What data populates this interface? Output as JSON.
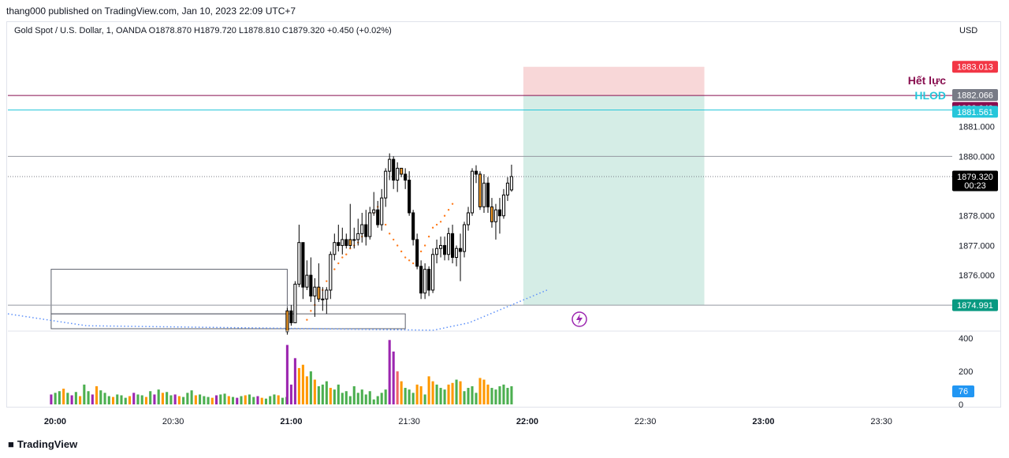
{
  "header": {
    "publisher_line": "thang000 published on TradingView.com, Jan 10, 2023 22:09 UTC+7",
    "symbol_line": "Gold Spot / U.S. Dollar, 1, OANDA  O1878.870  H1879.720  L1878.810  C1879.320  +0.450 (+0.02%)",
    "currency": "USD"
  },
  "footer": {
    "brand": "TradingView",
    "brand_icon": "tradingview-logo-icon"
  },
  "annotations": {
    "het_luc_label": "Hết lực",
    "hlod_label": "HLOD",
    "lightning_icon": "lightning-icon"
  },
  "price_badges": {
    "target": "1883.013",
    "grey": "1882.066",
    "het_luc": "1882.049",
    "hlod": "1881.561",
    "last": "1879.320",
    "countdown": "00:23",
    "stop": "1874.991",
    "volume": "76"
  },
  "colors": {
    "up_candle": "#ffffff",
    "down_candle": "#000000",
    "highlight_candle": "#f59d2a",
    "target_zone": "#f8d7d8",
    "stop_zone": "#d5ede6",
    "het_luc": "#880e4f",
    "hlod": "#26c6da",
    "volume_green": "#4caf50",
    "volume_orange": "#ff9800",
    "volume_purple": "#9c27b0",
    "volume_red": "#f0646a",
    "ma_blue": "#5b8ff9",
    "psar": "#ff7a1a"
  },
  "chart_data": {
    "type": "candlestick",
    "price_axis": {
      "ticks": [
        "1881.000",
        "1880.000",
        "1879.000",
        "1878.000",
        "1877.000",
        "1876.000"
      ],
      "range": [
        1874.2,
        1884.2
      ]
    },
    "time_axis": {
      "ticks": [
        "20:00",
        "20:30",
        "21:00",
        "21:30",
        "22:00",
        "22:30",
        "23:00",
        "23:30"
      ],
      "bold": [
        "20:00",
        "21:00",
        "22:00",
        "23:00"
      ]
    },
    "volume_axis": {
      "ticks": [
        "400",
        "200",
        "0"
      ],
      "range": [
        0,
        420
      ]
    },
    "candles_from": "20:59",
    "candles": [
      [
        1874.1,
        1874.9,
        1874.0,
        1874.8
      ],
      [
        1874.8,
        1875.0,
        1874.3,
        1874.4
      ],
      [
        1874.4,
        1875.8,
        1874.4,
        1875.7
      ],
      [
        1875.7,
        1877.7,
        1875.6,
        1877.1
      ],
      [
        1877.1,
        1877.1,
        1875.2,
        1875.6
      ],
      [
        1875.6,
        1876.5,
        1875.5,
        1876.0
      ],
      [
        1876.0,
        1876.6,
        1875.1,
        1875.3
      ],
      [
        1875.3,
        1875.9,
        1874.6,
        1875.6
      ],
      [
        1875.6,
        1876.4,
        1875.1,
        1875.2
      ],
      [
        1875.2,
        1875.6,
        1874.8,
        1875.2
      ],
      [
        1875.2,
        1875.6,
        1874.7,
        1875.5
      ],
      [
        1875.5,
        1876.8,
        1875.2,
        1876.7
      ],
      [
        1876.7,
        1877.4,
        1876.5,
        1877.1
      ],
      [
        1877.1,
        1877.7,
        1876.8,
        1877.0
      ],
      [
        1877.0,
        1877.6,
        1876.7,
        1877.2
      ],
      [
        1877.2,
        1877.4,
        1876.9,
        1877.0
      ],
      [
        1877.0,
        1878.4,
        1876.9,
        1877.2
      ],
      [
        1877.2,
        1877.6,
        1876.9,
        1877.2
      ],
      [
        1877.2,
        1877.9,
        1877.0,
        1877.4
      ],
      [
        1877.4,
        1878.1,
        1877.1,
        1877.7
      ],
      [
        1877.7,
        1878.2,
        1877.0,
        1877.3
      ],
      [
        1877.3,
        1878.3,
        1877.2,
        1878.1
      ],
      [
        1878.1,
        1878.8,
        1878.0,
        1878.2
      ],
      [
        1878.2,
        1878.5,
        1877.6,
        1877.7
      ],
      [
        1877.7,
        1878.9,
        1877.5,
        1878.6
      ],
      [
        1878.6,
        1879.6,
        1878.3,
        1879.5
      ],
      [
        1879.5,
        1880.1,
        1879.2,
        1879.9
      ],
      [
        1879.9,
        1880.0,
        1878.9,
        1879.2
      ],
      [
        1879.2,
        1879.8,
        1878.8,
        1879.6
      ],
      [
        1879.6,
        1879.6,
        1879.3,
        1879.4
      ],
      [
        1879.4,
        1879.6,
        1878.9,
        1879.2
      ],
      [
        1879.2,
        1879.5,
        1878.0,
        1878.1
      ],
      [
        1878.1,
        1878.2,
        1877.0,
        1877.2
      ],
      [
        1877.2,
        1877.4,
        1876.2,
        1876.3
      ],
      [
        1876.3,
        1876.5,
        1875.2,
        1875.4
      ],
      [
        1875.4,
        1876.4,
        1875.2,
        1876.2
      ],
      [
        1876.2,
        1876.3,
        1875.3,
        1875.5
      ],
      [
        1875.5,
        1876.9,
        1875.4,
        1876.7
      ],
      [
        1876.7,
        1877.2,
        1876.4,
        1876.9
      ],
      [
        1876.9,
        1877.3,
        1876.6,
        1877.0
      ],
      [
        1877.0,
        1877.3,
        1876.5,
        1876.7
      ],
      [
        1876.7,
        1877.6,
        1876.5,
        1877.4
      ],
      [
        1877.4,
        1877.7,
        1876.4,
        1876.6
      ],
      [
        1876.6,
        1877.0,
        1876.3,
        1876.9
      ],
      [
        1876.9,
        1877.4,
        1875.8,
        1876.8
      ],
      [
        1876.8,
        1877.8,
        1876.6,
        1877.7
      ],
      [
        1877.7,
        1878.3,
        1877.5,
        1878.1
      ],
      [
        1878.1,
        1879.6,
        1878.0,
        1879.5
      ],
      [
        1879.5,
        1879.7,
        1879.1,
        1879.4
      ],
      [
        1879.4,
        1879.5,
        1878.2,
        1878.3
      ],
      [
        1878.3,
        1879.4,
        1878.1,
        1879.1
      ],
      [
        1879.1,
        1879.3,
        1878.1,
        1878.3
      ],
      [
        1878.3,
        1878.6,
        1877.6,
        1877.8
      ],
      [
        1877.8,
        1878.4,
        1877.2,
        1878.2
      ],
      [
        1878.2,
        1878.6,
        1877.4,
        1878.0
      ],
      [
        1878.0,
        1878.9,
        1877.9,
        1878.7
      ],
      [
        1878.7,
        1879.3,
        1878.5,
        1879.1
      ],
      [
        1878.87,
        1879.72,
        1878.81,
        1879.32
      ]
    ],
    "highlighted_candles": [
      0,
      8,
      16,
      29,
      49,
      52
    ],
    "volume": [
      360,
      120,
      280,
      220,
      240,
      170,
      200,
      150,
      110,
      120,
      140,
      100,
      90,
      120,
      70,
      80,
      50,
      110,
      70,
      90,
      60,
      80,
      30,
      50,
      70,
      90,
      390,
      320,
      200,
      140,
      100,
      90,
      70,
      120,
      110,
      60,
      170,
      140,
      120,
      100,
      90,
      120,
      130,
      150,
      140,
      80,
      100,
      110,
      70,
      160,
      150,
      120,
      100,
      90,
      110,
      120,
      100,
      110
    ],
    "volume_colors": [
      "purple",
      "purple",
      "purple",
      "orange",
      "orange",
      "orange",
      "green",
      "orange",
      "green",
      "green",
      "green",
      "orange",
      "green",
      "green",
      "green",
      "green",
      "green",
      "green",
      "green",
      "green",
      "green",
      "green",
      "green",
      "green",
      "green",
      "green",
      "purple",
      "purple",
      "red",
      "orange",
      "green",
      "green",
      "green",
      "orange",
      "orange",
      "green",
      "orange",
      "orange",
      "green",
      "green",
      "green",
      "orange",
      "orange",
      "green",
      "orange",
      "green",
      "green",
      "green",
      "green",
      "orange",
      "orange",
      "orange",
      "green",
      "green",
      "green",
      "green",
      "green",
      "green"
    ],
    "history_volume": [
      60,
      70,
      80,
      95,
      70,
      55,
      75,
      50,
      120,
      80,
      60,
      110,
      85,
      70,
      50,
      45,
      60,
      55,
      40,
      50,
      70,
      60,
      55,
      45,
      80,
      60,
      90,
      70,
      75,
      55,
      60,
      50,
      45,
      70,
      85,
      55,
      60,
      50,
      45,
      40,
      55,
      60,
      65,
      50,
      45,
      40,
      50,
      55,
      60,
      45,
      50,
      40,
      35,
      50,
      60,
      55,
      40,
      45
    ],
    "psar": [
      1873.2,
      1873.5,
      1873.9,
      1874.2,
      1874.5,
      1874.8,
      1875.0,
      1875.3,
      1875.5,
      1875.8,
      1876.0,
      1876.2,
      1876.4,
      1876.6,
      1876.7,
      1876.9,
      1877.0,
      1877.1,
      1877.3,
      1877.5,
      1877.8,
      1878.1,
      1878.3,
      1878.0,
      1877.7,
      1877.4,
      1877.2,
      1877.0,
      1876.8,
      1876.6,
      1876.5,
      1876.4,
      1876.5,
      1876.8,
      1877.0,
      1877.3,
      1877.6,
      1877.7,
      1877.8,
      1878.0,
      1878.2,
      1878.4
    ],
    "ma": [
      1873.9,
      1874.0,
      1874.05,
      1874.1,
      1874.15,
      1874.2,
      1874.25,
      1874.3,
      1874.35,
      1874.4,
      1874.5,
      1874.6,
      1874.7,
      1874.8,
      1874.9,
      1875.0,
      1875.1,
      1875.2,
      1875.3,
      1875.4,
      1875.5
    ],
    "levels": {
      "het_luc": 1882.049,
      "hlod": 1881.561,
      "grey": 1882.066,
      "round_1880": 1880.0,
      "last": 1879.32,
      "stop": 1874.991,
      "target": 1883.013
    },
    "position": {
      "entry": 1882.049,
      "target": 1883.013,
      "stop": 1874.991,
      "from": "21:59",
      "to": "22:45"
    },
    "boxes": [
      {
        "from": "19:59",
        "to": "20:59",
        "top": 1876.2,
        "bottom": 1874.7
      },
      {
        "from": "19:59",
        "to": "21:29",
        "top": 1874.7,
        "bottom": 1874.2
      }
    ]
  }
}
